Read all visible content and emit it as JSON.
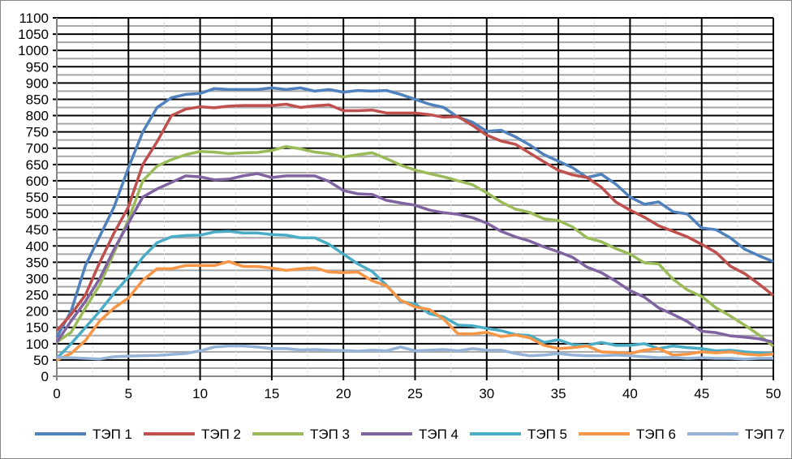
{
  "chart_data": {
    "type": "line",
    "title": "",
    "xlabel": "",
    "ylabel": "",
    "xlim": [
      0,
      50
    ],
    "ylim": [
      0,
      1100
    ],
    "x_ticks": [
      0,
      5,
      10,
      15,
      20,
      25,
      30,
      35,
      40,
      45,
      50
    ],
    "y_ticks": [
      0,
      50,
      100,
      150,
      200,
      250,
      300,
      350,
      400,
      450,
      500,
      550,
      600,
      650,
      700,
      750,
      800,
      850,
      900,
      950,
      1000,
      1050,
      1100
    ],
    "grid": true,
    "legend": "bottom",
    "x": [
      0,
      1,
      2,
      3,
      4,
      5,
      6,
      7,
      8,
      9,
      10,
      11,
      12,
      13,
      14,
      15,
      16,
      17,
      18,
      19,
      20,
      21,
      22,
      23,
      24,
      25,
      26,
      27,
      28,
      29,
      30,
      31,
      32,
      33,
      34,
      35,
      36,
      37,
      38,
      39,
      40,
      41,
      42,
      43,
      44,
      45,
      46,
      47,
      48,
      49,
      50
    ],
    "series": [
      {
        "name": "ТЭП 1",
        "color": "#4F81BD",
        "values": [
          120,
          200,
          340,
          430,
          520,
          640,
          750,
          825,
          855,
          865,
          868,
          883,
          880,
          880,
          880,
          885,
          880,
          885,
          875,
          880,
          872,
          877,
          875,
          877,
          865,
          850,
          835,
          825,
          795,
          780,
          752,
          755,
          735,
          710,
          680,
          660,
          640,
          610,
          620,
          590,
          550,
          528,
          535,
          505,
          498,
          455,
          450,
          425,
          390,
          370,
          352
        ]
      },
      {
        "name": "ТЭП 2",
        "color": "#C0504D",
        "values": [
          140,
          190,
          250,
          350,
          440,
          520,
          650,
          720,
          800,
          820,
          827,
          824,
          829,
          831,
          831,
          831,
          835,
          825,
          830,
          833,
          815,
          815,
          817,
          808,
          808,
          808,
          803,
          795,
          797,
          770,
          740,
          722,
          712,
          685,
          658,
          632,
          618,
          610,
          580,
          535,
          510,
          488,
          462,
          445,
          428,
          405,
          380,
          338,
          315,
          283,
          248
        ]
      },
      {
        "name": "ТЭП 3",
        "color": "#9BBB59",
        "values": [
          105,
          135,
          210,
          280,
          380,
          480,
          600,
          645,
          665,
          680,
          690,
          688,
          683,
          686,
          687,
          693,
          705,
          698,
          688,
          683,
          673,
          680,
          686,
          668,
          648,
          633,
          622,
          612,
          600,
          588,
          563,
          535,
          513,
          503,
          483,
          478,
          458,
          425,
          413,
          392,
          375,
          348,
          345,
          298,
          265,
          245,
          210,
          185,
          157,
          127,
          92
        ]
      },
      {
        "name": "ТЭП 4",
        "color": "#8064A2",
        "values": [
          105,
          170,
          230,
          300,
          390,
          470,
          550,
          575,
          595,
          615,
          612,
          603,
          605,
          615,
          622,
          610,
          615,
          615,
          615,
          598,
          570,
          560,
          558,
          540,
          532,
          525,
          510,
          502,
          497,
          487,
          470,
          445,
          428,
          415,
          397,
          382,
          365,
          335,
          318,
          292,
          263,
          243,
          210,
          190,
          168,
          138,
          134,
          124,
          120,
          115,
          105
        ]
      },
      {
        "name": "ТЭП 5",
        "color": "#4BACC6",
        "values": [
          55,
          100,
          150,
          200,
          255,
          305,
          365,
          410,
          428,
          432,
          433,
          443,
          445,
          440,
          440,
          435,
          433,
          425,
          425,
          405,
          375,
          345,
          322,
          280,
          230,
          222,
          192,
          182,
          157,
          155,
          147,
          140,
          128,
          125,
          104,
          112,
          97,
          95,
          104,
          95,
          95,
          100,
          85,
          93,
          88,
          85,
          78,
          80,
          75,
          72,
          70
        ]
      },
      {
        "name": "ТЭП 6",
        "color": "#F79646",
        "values": [
          50,
          70,
          110,
          170,
          210,
          240,
          295,
          330,
          330,
          340,
          340,
          340,
          352,
          337,
          337,
          332,
          325,
          330,
          333,
          320,
          318,
          320,
          293,
          278,
          233,
          213,
          205,
          175,
          130,
          130,
          135,
          122,
          127,
          118,
          95,
          85,
          88,
          93,
          75,
          73,
          70,
          80,
          85,
          65,
          68,
          75,
          72,
          75,
          68,
          65,
          68
        ]
      },
      {
        "name": "ТЭП 7",
        "color": "#95B3D7",
        "values": [
          58,
          57,
          55,
          53,
          60,
          62,
          63,
          64,
          67,
          70,
          78,
          90,
          93,
          93,
          90,
          85,
          85,
          81,
          82,
          80,
          79,
          77,
          80,
          78,
          90,
          78,
          80,
          82,
          78,
          85,
          80,
          80,
          70,
          63,
          65,
          70,
          65,
          63,
          63,
          65,
          63,
          60,
          57,
          58,
          55,
          57,
          55,
          55,
          53,
          55,
          55
        ]
      }
    ]
  }
}
